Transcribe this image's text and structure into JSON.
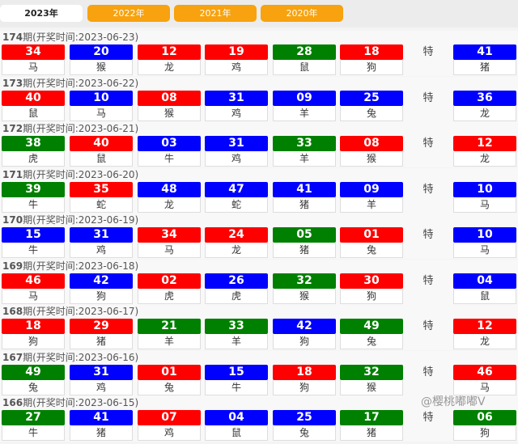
{
  "tabs": [
    "2023年",
    "2022年",
    "2021年",
    "2020年"
  ],
  "special_label": "特",
  "colors": {
    "red": "#ff0000",
    "blue": "#0000ff",
    "green": "#008000",
    "tab": "#f7a20e"
  },
  "draw_time_label": "期(开奖时间:",
  "watermark": "@樱桃嘟嘟V",
  "draws": [
    {
      "issue": "174",
      "date": "2023-06-23",
      "balls": [
        [
          "34",
          "马",
          "red"
        ],
        [
          "20",
          "猴",
          "blue"
        ],
        [
          "12",
          "龙",
          "red"
        ],
        [
          "19",
          "鸡",
          "red"
        ],
        [
          "28",
          "鼠",
          "green"
        ],
        [
          "18",
          "狗",
          "red"
        ]
      ],
      "special": [
        "41",
        "猪",
        "blue"
      ]
    },
    {
      "issue": "173",
      "date": "2023-06-22",
      "balls": [
        [
          "40",
          "鼠",
          "red"
        ],
        [
          "10",
          "马",
          "blue"
        ],
        [
          "08",
          "猴",
          "red"
        ],
        [
          "31",
          "鸡",
          "blue"
        ],
        [
          "09",
          "羊",
          "blue"
        ],
        [
          "25",
          "兔",
          "blue"
        ]
      ],
      "special": [
        "36",
        "龙",
        "blue"
      ]
    },
    {
      "issue": "172",
      "date": "2023-06-21",
      "balls": [
        [
          "38",
          "虎",
          "green"
        ],
        [
          "40",
          "鼠",
          "red"
        ],
        [
          "03",
          "牛",
          "blue"
        ],
        [
          "31",
          "鸡",
          "blue"
        ],
        [
          "33",
          "羊",
          "green"
        ],
        [
          "08",
          "猴",
          "red"
        ]
      ],
      "special": [
        "12",
        "龙",
        "red"
      ]
    },
    {
      "issue": "171",
      "date": "2023-06-20",
      "balls": [
        [
          "39",
          "牛",
          "green"
        ],
        [
          "35",
          "蛇",
          "red"
        ],
        [
          "48",
          "龙",
          "blue"
        ],
        [
          "47",
          "蛇",
          "blue"
        ],
        [
          "41",
          "猪",
          "blue"
        ],
        [
          "09",
          "羊",
          "blue"
        ]
      ],
      "special": [
        "10",
        "马",
        "blue"
      ]
    },
    {
      "issue": "170",
      "date": "2023-06-19",
      "balls": [
        [
          "15",
          "牛",
          "blue"
        ],
        [
          "31",
          "鸡",
          "blue"
        ],
        [
          "34",
          "马",
          "red"
        ],
        [
          "24",
          "龙",
          "red"
        ],
        [
          "05",
          "猪",
          "green"
        ],
        [
          "01",
          "兔",
          "red"
        ]
      ],
      "special": [
        "10",
        "马",
        "blue"
      ]
    },
    {
      "issue": "169",
      "date": "2023-06-18",
      "balls": [
        [
          "46",
          "马",
          "red"
        ],
        [
          "42",
          "狗",
          "blue"
        ],
        [
          "02",
          "虎",
          "red"
        ],
        [
          "26",
          "虎",
          "blue"
        ],
        [
          "32",
          "猴",
          "green"
        ],
        [
          "30",
          "狗",
          "red"
        ]
      ],
      "special": [
        "04",
        "鼠",
        "blue"
      ]
    },
    {
      "issue": "168",
      "date": "2023-06-17",
      "balls": [
        [
          "18",
          "狗",
          "red"
        ],
        [
          "29",
          "猪",
          "red"
        ],
        [
          "21",
          "羊",
          "green"
        ],
        [
          "33",
          "羊",
          "green"
        ],
        [
          "42",
          "狗",
          "blue"
        ],
        [
          "49",
          "兔",
          "green"
        ]
      ],
      "special": [
        "12",
        "龙",
        "red"
      ]
    },
    {
      "issue": "167",
      "date": "2023-06-16",
      "balls": [
        [
          "49",
          "兔",
          "green"
        ],
        [
          "31",
          "鸡",
          "blue"
        ],
        [
          "01",
          "兔",
          "red"
        ],
        [
          "15",
          "牛",
          "blue"
        ],
        [
          "18",
          "狗",
          "red"
        ],
        [
          "32",
          "猴",
          "green"
        ]
      ],
      "special": [
        "46",
        "马",
        "red"
      ]
    },
    {
      "issue": "166",
      "date": "2023-06-15",
      "balls": [
        [
          "27",
          "牛",
          "green"
        ],
        [
          "41",
          "猪",
          "blue"
        ],
        [
          "07",
          "鸡",
          "red"
        ],
        [
          "04",
          "鼠",
          "blue"
        ],
        [
          "25",
          "兔",
          "blue"
        ],
        [
          "17",
          "猪",
          "green"
        ]
      ],
      "special": [
        "06",
        "狗",
        "green"
      ]
    }
  ]
}
